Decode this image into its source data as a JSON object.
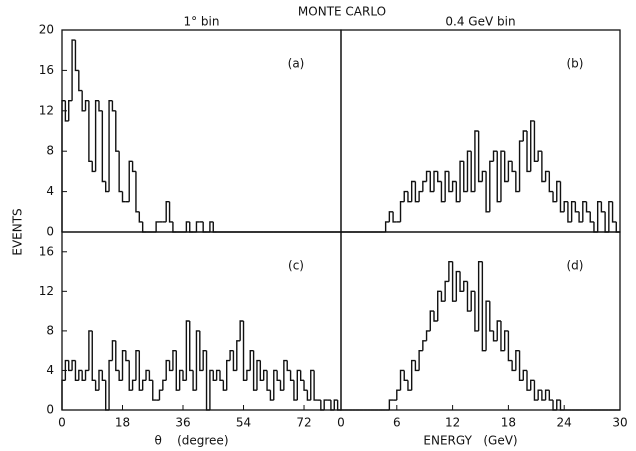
{
  "title": "MONTE CARLO",
  "y_label": "EVENTS",
  "chart_data": [
    {
      "type": "histogram",
      "label": "(a)",
      "subtitle": "1° bin",
      "bins": [
        0,
        1,
        2,
        3,
        4,
        5,
        6,
        7,
        8,
        9,
        10,
        11,
        12,
        13,
        14,
        15,
        16,
        17,
        18,
        19,
        20,
        21,
        22,
        23,
        24,
        25,
        26,
        27,
        28,
        29,
        30,
        31,
        32,
        33,
        34,
        35,
        36,
        37,
        38,
        39,
        40,
        41,
        42,
        43,
        44,
        45,
        46,
        47,
        48,
        49,
        50,
        51,
        52,
        53,
        54,
        55,
        56,
        57,
        58,
        59,
        60,
        61,
        62,
        63,
        64,
        65,
        66,
        67,
        68,
        69,
        70,
        71,
        72,
        73,
        74,
        75,
        76,
        77,
        78,
        79,
        80,
        81,
        82,
        83
      ],
      "values": [
        13,
        11,
        13,
        19,
        16,
        14,
        12,
        13,
        7,
        6,
        13,
        12,
        5,
        4,
        13,
        12,
        8,
        4,
        3,
        3,
        7,
        6,
        2,
        1,
        0,
        0,
        0,
        0,
        1,
        1,
        1,
        3,
        1,
        0,
        0,
        0,
        0,
        1,
        0,
        0,
        1,
        1,
        0,
        0,
        1,
        0,
        0,
        0,
        0,
        0,
        0,
        0,
        0,
        0,
        0,
        0,
        0,
        0,
        0,
        0,
        0,
        0,
        0,
        0,
        0,
        0,
        0,
        0,
        0,
        0,
        0,
        0,
        0,
        0,
        0,
        0,
        0,
        0,
        0,
        0,
        0,
        0,
        0
      ],
      "xlim": [
        0,
        83
      ],
      "ylim": [
        0,
        20
      ],
      "yticks": [
        0,
        4,
        8,
        12,
        16,
        20
      ]
    },
    {
      "type": "histogram",
      "label": "(b)",
      "subtitle": "0.4 GeV bin",
      "bins": [
        0,
        0.4,
        0.8,
        1.2,
        1.6,
        2,
        2.4,
        2.8,
        3.2,
        3.6,
        4,
        4.4,
        4.8,
        5.2,
        5.6,
        6,
        6.4,
        6.8,
        7.2,
        7.6,
        8,
        8.4,
        8.8,
        9.2,
        9.6,
        10,
        10.4,
        10.8,
        11.2,
        11.6,
        12,
        12.4,
        12.8,
        13.2,
        13.6,
        14,
        14.4,
        14.8,
        15.2,
        15.6,
        16,
        16.4,
        16.8,
        17.2,
        17.6,
        18,
        18.4,
        18.8,
        19.2,
        19.6,
        20,
        20.4,
        20.8,
        21.2,
        21.6,
        22,
        22.4,
        22.8,
        23.2,
        23.6,
        24,
        24.4,
        24.8,
        25.2,
        25.6,
        26,
        26.4,
        26.8,
        27.2,
        27.6,
        28,
        28.4,
        28.8,
        29.2,
        29.6,
        30
      ],
      "values": [
        0,
        0,
        0,
        0,
        0,
        0,
        0,
        0,
        0,
        0,
        0,
        0,
        1,
        2,
        1,
        1,
        3,
        4,
        3,
        5,
        3,
        4,
        5,
        6,
        4,
        6,
        5,
        3,
        6,
        4,
        5,
        3,
        7,
        4,
        8,
        4,
        10,
        5,
        6,
        2,
        7,
        8,
        3,
        8,
        5,
        7,
        6,
        4,
        9,
        10,
        6,
        11,
        7,
        8,
        5,
        6,
        4,
        3,
        5,
        2,
        3,
        1,
        3,
        2,
        1,
        3,
        2,
        1,
        0,
        3,
        2,
        0,
        3,
        1,
        0
      ],
      "xlim": [
        0,
        30
      ],
      "ylim": [
        0,
        20
      ]
    },
    {
      "type": "histogram",
      "label": "(c)",
      "x_label": "θ    (degree)",
      "bins": [
        0,
        1,
        2,
        3,
        4,
        5,
        6,
        7,
        8,
        9,
        10,
        11,
        12,
        13,
        14,
        15,
        16,
        17,
        18,
        19,
        20,
        21,
        22,
        23,
        24,
        25,
        26,
        27,
        28,
        29,
        30,
        31,
        32,
        33,
        34,
        35,
        36,
        37,
        38,
        39,
        40,
        41,
        42,
        43,
        44,
        45,
        46,
        47,
        48,
        49,
        50,
        51,
        52,
        53,
        54,
        55,
        56,
        57,
        58,
        59,
        60,
        61,
        62,
        63,
        64,
        65,
        66,
        67,
        68,
        69,
        70,
        71,
        72,
        73,
        74,
        75,
        76,
        77,
        78,
        79,
        80,
        81,
        82,
        83
      ],
      "values": [
        3,
        5,
        4,
        5,
        3,
        4,
        3,
        4,
        8,
        3,
        2,
        4,
        3,
        0,
        5,
        7,
        4,
        3,
        6,
        5,
        2,
        3,
        6,
        2,
        3,
        4,
        3,
        1,
        1,
        2,
        3,
        5,
        4,
        6,
        2,
        4,
        3,
        9,
        4,
        2,
        8,
        4,
        6,
        0,
        4,
        3,
        4,
        3,
        2,
        5,
        6,
        4,
        7,
        9,
        3,
        4,
        6,
        2,
        5,
        3,
        4,
        2,
        1,
        4,
        3,
        2,
        5,
        4,
        3,
        1,
        4,
        3,
        2,
        1,
        4,
        1,
        1,
        0,
        1,
        1,
        0,
        1,
        0
      ],
      "xlim": [
        0,
        83
      ],
      "ylim": [
        0,
        18
      ],
      "xticks": [
        0,
        18,
        36,
        54,
        72
      ],
      "yticks": [
        0,
        4,
        8,
        12,
        16
      ]
    },
    {
      "type": "histogram",
      "label": "(d)",
      "x_label": "ENERGY   (GeV)",
      "bins": [
        0,
        0.4,
        0.8,
        1.2,
        1.6,
        2,
        2.4,
        2.8,
        3.2,
        3.6,
        4,
        4.4,
        4.8,
        5.2,
        5.6,
        6,
        6.4,
        6.8,
        7.2,
        7.6,
        8,
        8.4,
        8.8,
        9.2,
        9.6,
        10,
        10.4,
        10.8,
        11.2,
        11.6,
        12,
        12.4,
        12.8,
        13.2,
        13.6,
        14,
        14.4,
        14.8,
        15.2,
        15.6,
        16,
        16.4,
        16.8,
        17.2,
        17.6,
        18,
        18.4,
        18.8,
        19.2,
        19.6,
        20,
        20.4,
        20.8,
        21.2,
        21.6,
        22,
        22.4,
        22.8,
        23.2,
        23.6,
        24,
        24.4,
        24.8,
        25.2,
        25.6,
        26,
        26.4,
        26.8,
        27.2,
        27.6,
        28,
        28.4,
        28.8,
        29.2,
        29.6,
        30
      ],
      "values": [
        0,
        0,
        0,
        0,
        0,
        0,
        0,
        0,
        0,
        0,
        0,
        0,
        0,
        1,
        1,
        2,
        4,
        3,
        2,
        5,
        4,
        6,
        7,
        8,
        10,
        9,
        12,
        11,
        13,
        15,
        11,
        14,
        12,
        13,
        10,
        12,
        8,
        15,
        6,
        11,
        8,
        7,
        9,
        6,
        8,
        5,
        4,
        6,
        3,
        4,
        2,
        3,
        1,
        2,
        1,
        2,
        1,
        0,
        1,
        0,
        0,
        0,
        0,
        0,
        0,
        0,
        0,
        0,
        0,
        0,
        0,
        0,
        0,
        0,
        0
      ],
      "xlim": [
        0,
        30
      ],
      "ylim": [
        0,
        18
      ],
      "xticks": [
        0,
        6,
        12,
        18,
        24,
        30
      ]
    }
  ]
}
